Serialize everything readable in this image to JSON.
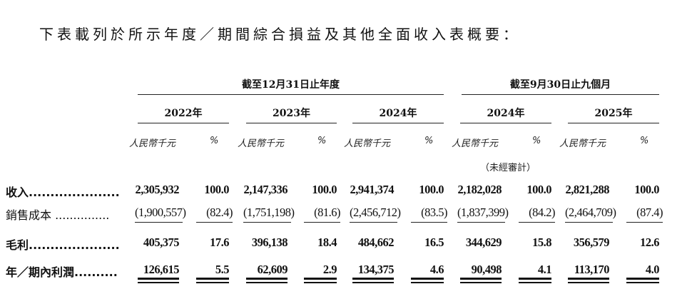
{
  "title": "下表載列於所示年度／期間綜合損益及其他全面收入表概要：",
  "groups": [
    {
      "label": "截至12月31日止年度"
    },
    {
      "label": "截至9月30日止九個月"
    }
  ],
  "periods": [
    {
      "year": "2022年",
      "unit": "人民幣千元",
      "pct": "%",
      "note": ""
    },
    {
      "year": "2023年",
      "unit": "人民幣千元",
      "pct": "%",
      "note": ""
    },
    {
      "year": "2024年",
      "unit": "人民幣千元",
      "pct": "%",
      "note": ""
    },
    {
      "year": "2024年",
      "unit": "人民幣千元",
      "pct": "%",
      "note": "（未經審計）"
    },
    {
      "year": "2025年",
      "unit": "人民幣千元",
      "pct": "%",
      "note": ""
    }
  ],
  "rows": [
    {
      "label": "收入.....................",
      "bold": true,
      "values": [
        [
          "2,305,932",
          "100.0"
        ],
        [
          "2,147,336",
          "100.0"
        ],
        [
          "2,941,374",
          "100.0"
        ],
        [
          "2,182,028",
          "100.0"
        ],
        [
          "2,821,288",
          "100.0"
        ]
      ]
    },
    {
      "label": "銷售成本 ...............",
      "bold": false,
      "values": [
        [
          "(1,900,557)",
          "(82.4)"
        ],
        [
          "(1,751,198)",
          "(81.6)"
        ],
        [
          "(2,456,712)",
          "(83.5)"
        ],
        [
          "(1,837,399)",
          "(84.2)"
        ],
        [
          "(2,464,709)",
          "(87.4)"
        ]
      ]
    },
    {
      "label": "毛利.....................",
      "bold": true,
      "values": [
        [
          "405,375",
          "17.6"
        ],
        [
          "396,138",
          "18.4"
        ],
        [
          "484,662",
          "16.5"
        ],
        [
          "344,629",
          "15.8"
        ],
        [
          "356,579",
          "12.6"
        ]
      ]
    },
    {
      "label": "年／期內利潤..........",
      "bold": true,
      "values": [
        [
          "126,615",
          "5.5"
        ],
        [
          "62,609",
          "2.9"
        ],
        [
          "134,375",
          "4.6"
        ],
        [
          "90,498",
          "4.1"
        ],
        [
          "113,170",
          "4.0"
        ]
      ]
    }
  ]
}
